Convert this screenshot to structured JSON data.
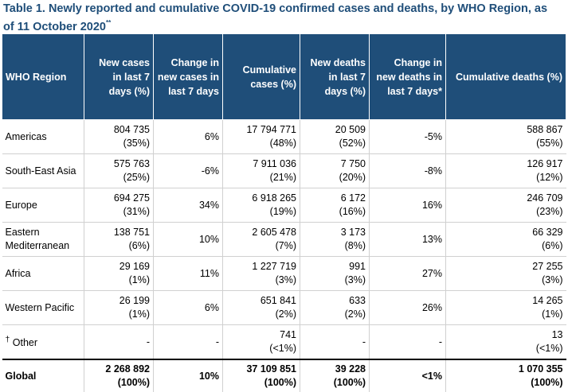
{
  "caption": {
    "text": "Table 1. Newly reported and cumulative COVID-19 confirmed cases and deaths, by WHO Region, as of 11 October 2020",
    "marker": "**"
  },
  "table": {
    "headers": [
      "WHO Region",
      "New cases in last 7 days (%)",
      "Change in new cases in last 7 days",
      "Cumulative cases (%)",
      "New deaths in last 7 days (%)",
      "Change in new deaths in last 7 days*",
      "Cumulative deaths (%)"
    ],
    "rows": [
      {
        "region": "Americas",
        "new_cases": "804 735",
        "new_cases_pct": "(35%)",
        "change_cases": "6%",
        "cum_cases": "17 794 771",
        "cum_cases_pct": "(48%)",
        "new_deaths": "20 509",
        "new_deaths_pct": "(52%)",
        "change_deaths": "-5%",
        "cum_deaths": "588 867",
        "cum_deaths_pct": "(55%)"
      },
      {
        "region": "South-East Asia",
        "new_cases": "575 763",
        "new_cases_pct": "(25%)",
        "change_cases": "-6%",
        "cum_cases": "7 911 036",
        "cum_cases_pct": "(21%)",
        "new_deaths": "7 750",
        "new_deaths_pct": "(20%)",
        "change_deaths": "-8%",
        "cum_deaths": "126 917",
        "cum_deaths_pct": "(12%)"
      },
      {
        "region": "Europe",
        "new_cases": "694 275",
        "new_cases_pct": "(31%)",
        "change_cases": "34%",
        "cum_cases": "6 918 265",
        "cum_cases_pct": "(19%)",
        "new_deaths": "6 172",
        "new_deaths_pct": "(16%)",
        "change_deaths": "16%",
        "cum_deaths": "246 709",
        "cum_deaths_pct": "(23%)"
      },
      {
        "region": "Eastern Mediterranean",
        "new_cases": "138 751",
        "new_cases_pct": "(6%)",
        "change_cases": "10%",
        "cum_cases": "2 605 478",
        "cum_cases_pct": "(7%)",
        "new_deaths": "3 173",
        "new_deaths_pct": "(8%)",
        "change_deaths": "13%",
        "cum_deaths": "66 329",
        "cum_deaths_pct": "(6%)"
      },
      {
        "region": "Africa",
        "new_cases": "29 169",
        "new_cases_pct": "(1%)",
        "change_cases": "11%",
        "cum_cases": "1 227 719",
        "cum_cases_pct": "(3%)",
        "new_deaths": "991",
        "new_deaths_pct": "(3%)",
        "change_deaths": "27%",
        "cum_deaths": "27 255",
        "cum_deaths_pct": "(3%)"
      },
      {
        "region": "Western Pacific",
        "new_cases": "26 199",
        "new_cases_pct": "(1%)",
        "change_cases": "6%",
        "cum_cases": "651 841",
        "cum_cases_pct": "(2%)",
        "new_deaths": "633",
        "new_deaths_pct": "(2%)",
        "change_deaths": "26%",
        "cum_deaths": "14 265",
        "cum_deaths_pct": "(1%)"
      }
    ],
    "other": {
      "region_marker": "†",
      "region": "Other",
      "new_cases": "-",
      "change_cases": "-",
      "cum_cases": "741",
      "cum_cases_pct": "(<1%)",
      "new_deaths": "-",
      "change_deaths": "-",
      "cum_deaths": "13",
      "cum_deaths_pct": "(<1%)"
    },
    "global": {
      "region": "Global",
      "new_cases": "2 268 892",
      "new_cases_pct": "(100%)",
      "change_cases": "10%",
      "cum_cases": "37 109 851",
      "cum_cases_pct": "(100%)",
      "new_deaths": "39 228",
      "new_deaths_pct": "(100%)",
      "change_deaths": "<1%",
      "cum_deaths": "1 070 355",
      "cum_deaths_pct": "(100%)"
    }
  }
}
